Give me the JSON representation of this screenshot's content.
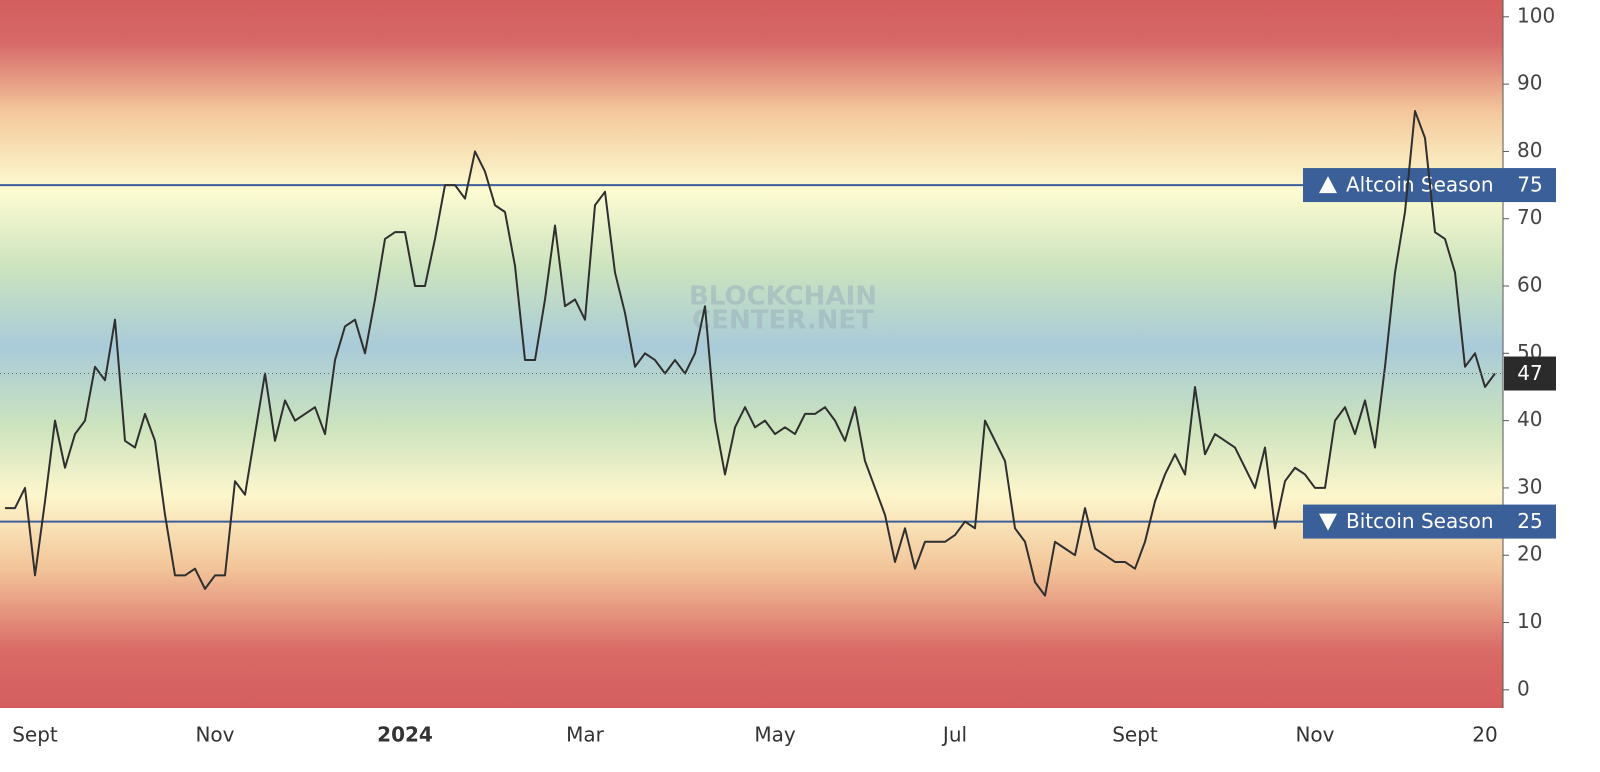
{
  "chart_data": {
    "type": "line",
    "watermark": [
      "BLOCKCHAIN",
      "CENTER.NET"
    ],
    "categories": [
      null,
      null,
      null,
      "Sept",
      null,
      null,
      null,
      null,
      null,
      null,
      null,
      null,
      null,
      null,
      null,
      null,
      null,
      null,
      null,
      null,
      null,
      "Nov",
      null,
      null,
      null,
      null,
      null,
      null,
      null,
      null,
      null,
      null,
      null,
      null,
      null,
      null,
      null,
      null,
      null,
      null,
      "2024",
      null,
      null,
      null,
      null,
      null,
      null,
      null,
      null,
      null,
      null,
      null,
      null,
      null,
      null,
      null,
      null,
      null,
      "Mar",
      null,
      null,
      null,
      null,
      null,
      null,
      null,
      null,
      null,
      null,
      null,
      null,
      null,
      null,
      null,
      null,
      null,
      null,
      "May",
      null,
      null,
      null,
      null,
      null,
      null,
      null,
      null,
      null,
      null,
      null,
      null,
      null,
      null,
      null,
      null,
      null,
      "Jul",
      null,
      null,
      null,
      null,
      null,
      null,
      null,
      null,
      null,
      null,
      null,
      null,
      null,
      null,
      null,
      null,
      null,
      "Sept",
      null,
      null,
      null,
      null,
      null,
      null,
      null,
      null,
      null,
      null,
      null,
      null,
      null,
      null,
      null,
      null,
      null,
      "Nov",
      null,
      null,
      null,
      null,
      null,
      null,
      null,
      null,
      null,
      null,
      null,
      null,
      null,
      null,
      null,
      null,
      "20",
      null
    ],
    "values": [
      27,
      27,
      30,
      17,
      28,
      40,
      33,
      38,
      40,
      48,
      46,
      55,
      37,
      36,
      41,
      37,
      26,
      17,
      17,
      18,
      15,
      17,
      17,
      31,
      29,
      38,
      47,
      37,
      43,
      40,
      41,
      42,
      38,
      49,
      54,
      55,
      50,
      58,
      67,
      68,
      68,
      60,
      60,
      67,
      75,
      75,
      73,
      80,
      77,
      72,
      71,
      63,
      49,
      49,
      58,
      69,
      57,
      58,
      55,
      72,
      74,
      62,
      56,
      48,
      50,
      49,
      47,
      49,
      47,
      50,
      57,
      40,
      32,
      39,
      42,
      39,
      40,
      38,
      39,
      38,
      41,
      41,
      42,
      40,
      37,
      42,
      34,
      30,
      26,
      19,
      24,
      18,
      22,
      22,
      22,
      23,
      25,
      24,
      40,
      37,
      34,
      24,
      22,
      16,
      14,
      22,
      21,
      20,
      27,
      21,
      20,
      19,
      19,
      18,
      22,
      28,
      32,
      35,
      32,
      45,
      35,
      38,
      37,
      36,
      33,
      30,
      36,
      24,
      31,
      33,
      32,
      30,
      30,
      40,
      42,
      38,
      43,
      36,
      48,
      62,
      71,
      86,
      82,
      68,
      67,
      62,
      48,
      50,
      45,
      47
    ],
    "color": "#2f2f2f",
    "ylim": [
      -2.7,
      102.5
    ],
    "yticks": [
      0,
      10,
      20,
      30,
      40,
      50,
      60,
      70,
      80,
      90,
      100
    ],
    "reference_lines": [
      {
        "value": 75,
        "label": "Altcoin Season",
        "direction": "up",
        "color": "#3b5f98"
      },
      {
        "value": 25,
        "label": "Bitcoin Season",
        "direction": "down",
        "color": "#3b5f98"
      }
    ]
  }
}
